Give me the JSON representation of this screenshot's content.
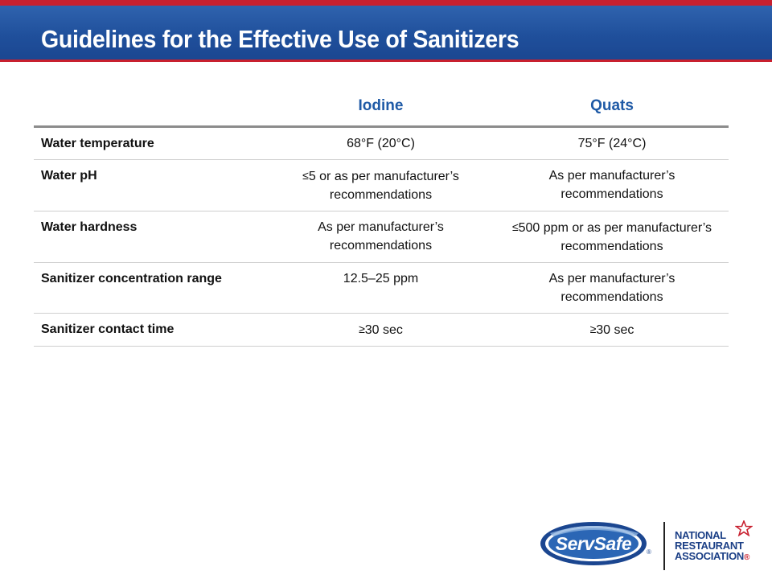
{
  "header": {
    "title": "Guidelines for the Effective Use of Sanitizers"
  },
  "table": {
    "columns": [
      "",
      "Iodine",
      "Quats"
    ],
    "rows": [
      {
        "label": "Water temperature",
        "iodine": "68°F (20°C)",
        "quats": "75°F (24°C)"
      },
      {
        "label": "Water pH",
        "iodine_symbol": "≤",
        "iodine": "5 or as per manufacturer’s recommendations",
        "quats": "As per manufacturer’s recommendations"
      },
      {
        "label": "Water hardness",
        "iodine": "As per manufacturer’s recommendations",
        "quats_symbol": "≤",
        "quats": "500 ppm or as per manufacturer’s recommendations"
      },
      {
        "label": "Sanitizer concentration range",
        "iodine": "12.5–25 ppm",
        "quats": "As per manufacturer’s recommendations"
      },
      {
        "label": "Sanitizer contact time",
        "iodine_symbol": "≥",
        "iodine": "30 sec",
        "quats_symbol": "≥",
        "quats": "30 sec"
      }
    ]
  },
  "footer": {
    "servsafe_logo_text": "ServSafe",
    "nra_line1": "NATIONAL",
    "nra_line2": "RESTAURANT",
    "nra_line3": "ASSOCIATION",
    "registered_mark": "®"
  },
  "colors": {
    "title_bar": "#1f4f9b",
    "accent_red": "#c8202f",
    "header_text": "#1f5aa6"
  }
}
